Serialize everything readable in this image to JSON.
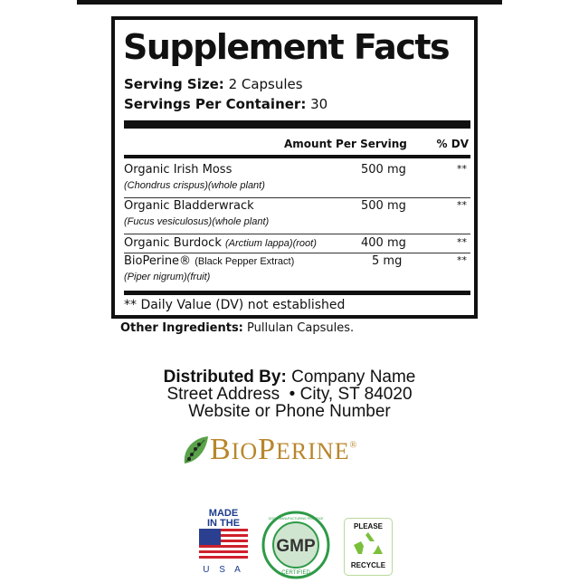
{
  "panel": {
    "title": "Supplement Facts",
    "serving_size_label": "Serving Size:",
    "serving_size_value": "2 Capsules",
    "servings_per_container_label": "Servings Per Container:",
    "servings_per_container_value": "30",
    "header_amount": "Amount Per Serving",
    "header_dv": "% DV",
    "rows": [
      {
        "name": "Organic Irish Moss",
        "inline": "",
        "sub": "(Chondrus crispus)(whole plant)",
        "amount": "500 mg",
        "dv": "**"
      },
      {
        "name": "Organic Bladderwrack",
        "inline": "",
        "sub": "(Fucus vesiculosus)(whole plant)",
        "amount": "500 mg",
        "dv": "**"
      },
      {
        "name": "Organic Burdock",
        "inline": "(Arctium lappa)(root)",
        "sub": "",
        "amount": "400 mg",
        "dv": "**"
      },
      {
        "name": "BioPerine®",
        "inline": "(Black Pepper Extract)",
        "sub": "(Piper nigrum)(fruit)",
        "amount": "5 mg",
        "dv": "**"
      }
    ],
    "footnote": "** Daily Value (DV) not established"
  },
  "other_ingredients": {
    "label": "Other Ingredients:",
    "value": "Pullulan Capsules."
  },
  "distributor": {
    "label": "Distributed By:",
    "name": "Company Name",
    "address": "Street Address  • City, ST 84020",
    "contact": "Website or Phone Number"
  },
  "bioperine_logo": {
    "text_big1": "B",
    "text_small1": "IO",
    "text_big2": "P",
    "text_small2": "ERINE",
    "mark": "®",
    "color": "#b8862b"
  },
  "badges": {
    "usa": {
      "line1": "MADE",
      "line2": "IN THE",
      "line3": "U S A"
    },
    "gmp": {
      "center": "GMP",
      "top": "GOOD MANUFACTURING PRACTICE",
      "bottom": "CERTIFIED",
      "color": "#2e9a47"
    },
    "recycle": {
      "top": "PLEASE",
      "bottom": "RECYCLE",
      "color": "#7bbf3a"
    }
  }
}
